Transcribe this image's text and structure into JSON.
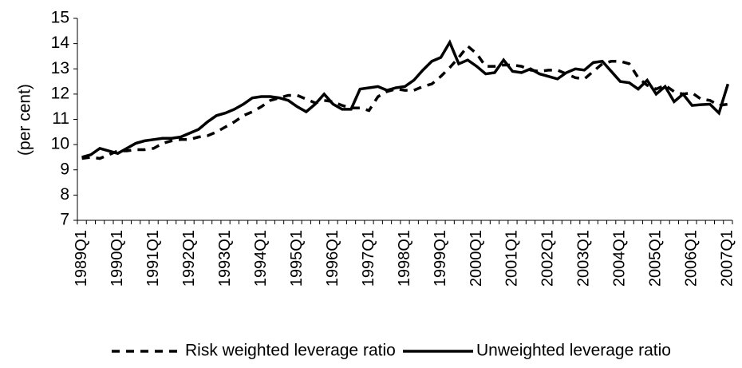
{
  "chart_data": {
    "type": "line",
    "y_label": "(per cent)",
    "categories": [
      "1989Q1",
      null,
      null,
      null,
      "1990Q1",
      null,
      null,
      null,
      "1991Q1",
      null,
      null,
      null,
      "1992Q1",
      null,
      null,
      null,
      "1993Q1",
      null,
      null,
      null,
      "1994Q1",
      null,
      null,
      null,
      "1995Q1",
      null,
      null,
      null,
      "1996Q1",
      null,
      null,
      null,
      "1997Q1",
      null,
      null,
      null,
      "1998Q1",
      null,
      null,
      null,
      "1999Q1",
      null,
      null,
      null,
      "2000Q1",
      null,
      null,
      null,
      "2001Q1",
      null,
      null,
      null,
      "2002Q1",
      null,
      null,
      null,
      "2003Q1",
      null,
      null,
      null,
      "2004Q1",
      null,
      null,
      null,
      "2005Q1",
      null,
      null,
      null,
      "2006Q1",
      null,
      null,
      null,
      "2007Q1"
    ],
    "series": [
      {
        "name": "Risk weighted leverage ratio",
        "color": "#000000",
        "dashed": true,
        "values": [
          9.45,
          9.5,
          9.45,
          9.6,
          9.75,
          9.75,
          9.8,
          9.8,
          9.85,
          10.05,
          10.15,
          10.2,
          10.2,
          10.3,
          10.35,
          10.5,
          10.7,
          10.9,
          11.15,
          11.3,
          11.5,
          11.75,
          11.85,
          11.95,
          11.95,
          11.8,
          11.65,
          11.75,
          11.7,
          11.55,
          11.45,
          11.45,
          11.35,
          11.9,
          12.1,
          12.2,
          12.15,
          12.15,
          12.3,
          12.4,
          12.7,
          13.05,
          13.45,
          13.9,
          13.6,
          13.1,
          13.1,
          13.15,
          13.15,
          13.1,
          12.95,
          12.9,
          12.95,
          12.95,
          12.8,
          12.65,
          12.6,
          12.9,
          13.2,
          13.3,
          13.3,
          13.2,
          12.65,
          12.35,
          12.2,
          12.35,
          12.1,
          12.0,
          12.05,
          11.8,
          11.75,
          11.55,
          11.6
        ]
      },
      {
        "name": "Unweighted leverage ratio",
        "color": "#000000",
        "dashed": false,
        "values": [
          9.5,
          9.6,
          9.85,
          9.75,
          9.65,
          9.85,
          10.05,
          10.15,
          10.2,
          10.25,
          10.25,
          10.3,
          10.45,
          10.6,
          10.9,
          11.15,
          11.25,
          11.4,
          11.6,
          11.85,
          11.9,
          11.9,
          11.85,
          11.75,
          11.5,
          11.3,
          11.6,
          12.0,
          11.6,
          11.4,
          11.4,
          12.2,
          12.25,
          12.3,
          12.15,
          12.25,
          12.3,
          12.55,
          12.95,
          13.3,
          13.45,
          14.05,
          13.2,
          13.35,
          13.1,
          12.8,
          12.85,
          13.35,
          12.9,
          12.85,
          13.0,
          12.8,
          12.7,
          12.6,
          12.85,
          13.0,
          12.95,
          13.25,
          13.3,
          12.9,
          12.5,
          12.45,
          12.2,
          12.55,
          12.0,
          12.3,
          11.7,
          12.0,
          11.55,
          11.58,
          11.6,
          11.25,
          12.4
        ]
      }
    ],
    "ylim": [
      7,
      15
    ],
    "yticks": [
      7,
      8,
      9,
      10,
      11,
      12,
      13,
      14,
      15
    ],
    "grid": false,
    "legend": "bottom"
  }
}
